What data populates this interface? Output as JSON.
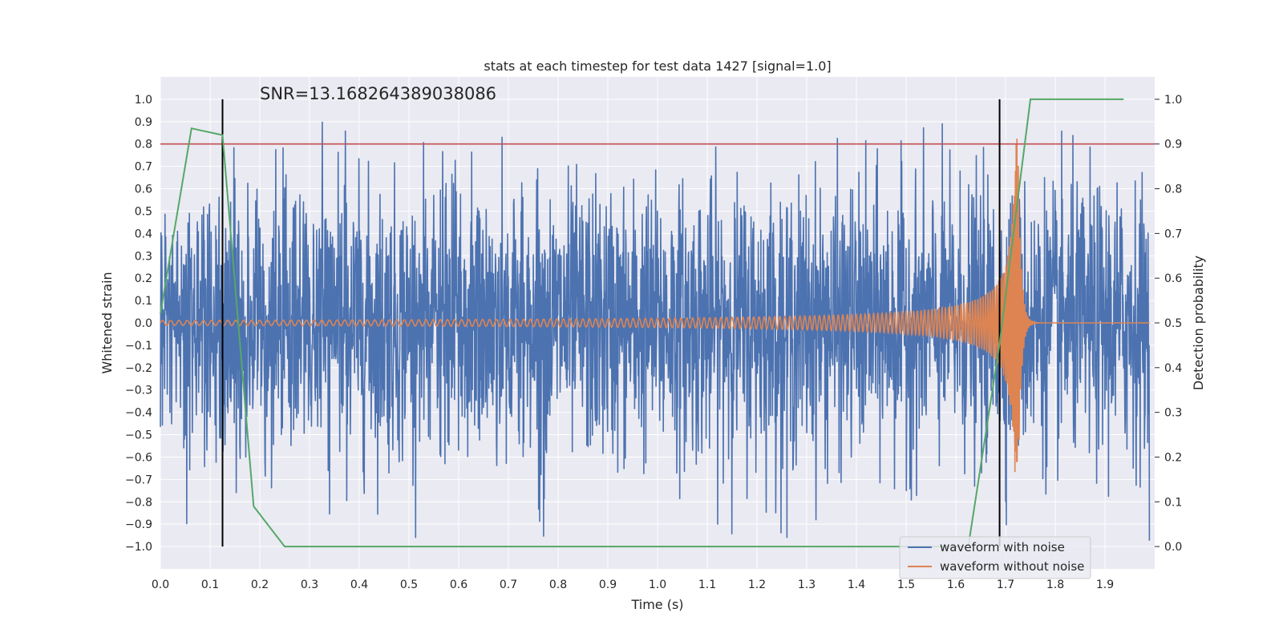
{
  "chart_data": {
    "type": "line",
    "title": "stats at each timestep for test data 1427 [signal=1.0]",
    "annotation": "SNR=13.168264389038086",
    "xlabel": "Time (s)",
    "ylabel": "Whitened strain",
    "ylabel_right": "Detection probability",
    "xlim": [
      0.0,
      2.0
    ],
    "ylim": [
      -1.1,
      1.1
    ],
    "ylim_right": [
      -0.05,
      1.05
    ],
    "x_ticks": [
      "0.0",
      "0.1",
      "0.2",
      "0.3",
      "0.4",
      "0.5",
      "0.6",
      "0.7",
      "0.8",
      "0.9",
      "1.0",
      "1.1",
      "1.2",
      "1.3",
      "1.4",
      "1.5",
      "1.6",
      "1.7",
      "1.8",
      "1.9"
    ],
    "y_ticks": [
      "1.0",
      "0.9",
      "0.8",
      "0.7",
      "0.6",
      "0.5",
      "0.4",
      "0.3",
      "0.2",
      "0.1",
      "0.0",
      "−0.1",
      "−0.2",
      "−0.3",
      "−0.4",
      "−0.5",
      "−0.6",
      "−0.7",
      "−0.8",
      "−0.9",
      "−1.0"
    ],
    "y_ticks_right": [
      "1.0",
      "0.9",
      "0.8",
      "0.7",
      "0.6",
      "0.5",
      "0.4",
      "0.3",
      "0.2",
      "0.1",
      "0.0"
    ],
    "grid": true,
    "legend_position": "lower-right",
    "series": [
      {
        "name": "waveform with noise",
        "color": "#4c72b0",
        "axis": "left",
        "description": "dense whitened strain noise, values roughly between -0.9 and 0.9"
      },
      {
        "name": "waveform without noise",
        "color": "#dd8452",
        "axis": "left",
        "description": "chirp signal growing in amplitude, merger near t=1.72 s",
        "chirp_merger_time": 1.725,
        "chirp_peak_amplitude": 0.83
      }
    ],
    "detection_probability": {
      "color": "#55a868",
      "axis": "right",
      "x": [
        0.0,
        0.0625,
        0.125,
        0.1875,
        0.25,
        1.625,
        1.6875,
        1.75,
        1.9375
      ],
      "y": [
        0.52,
        0.935,
        0.92,
        0.09,
        0.0,
        0.0,
        0.45,
        1.0,
        1.0
      ]
    },
    "threshold_line": {
      "y_right": 0.9,
      "color": "#c44e52"
    },
    "vertical_markers": [
      {
        "x": 0.125,
        "color": "#000000"
      },
      {
        "x": 1.688,
        "color": "#000000"
      }
    ]
  }
}
